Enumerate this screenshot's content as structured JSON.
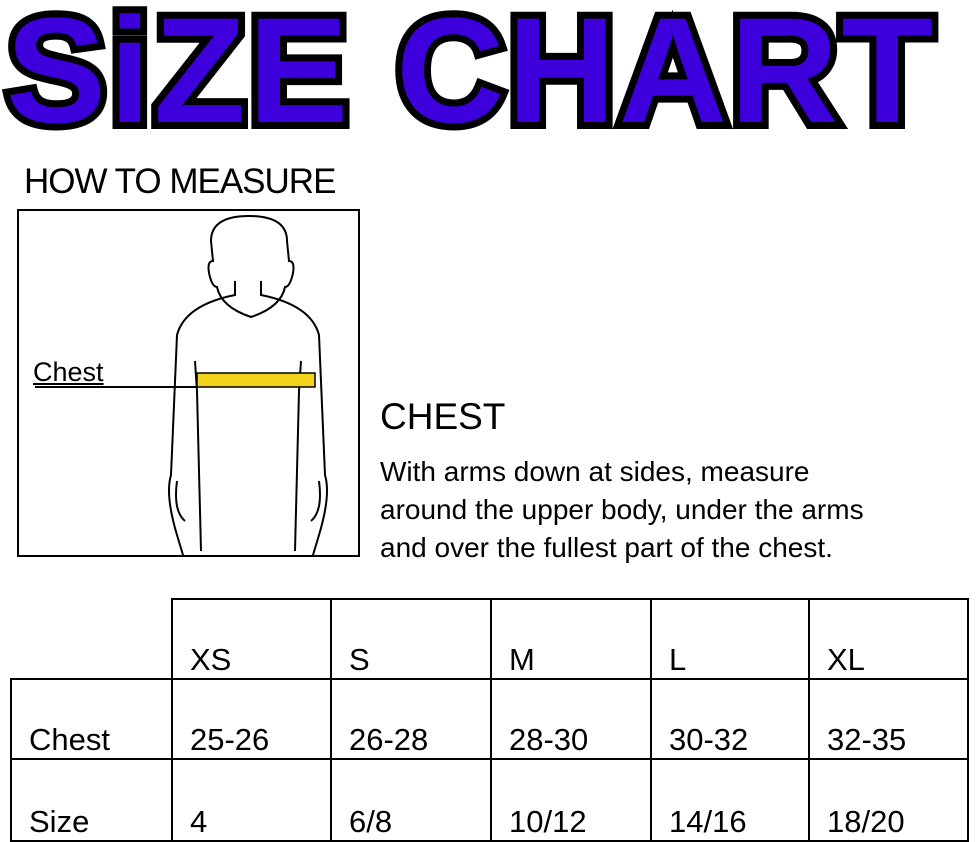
{
  "title": "SiZE CHART",
  "title_color": "#3d00dd",
  "how_to_measure": "HOW TO MEASURE",
  "figure": {
    "label": "Chest",
    "tape_color": "#f2d21b"
  },
  "chest": {
    "heading": "CHEST",
    "lines": [
      "With arms down at sides, measure",
      "around the upper body, under the arms",
      "and over the fullest part of the chest."
    ]
  },
  "table": {
    "sizes": [
      "XS",
      "S",
      "M",
      "L",
      "XL"
    ],
    "rows": [
      {
        "label": "Chest",
        "values": [
          "25-26",
          "26-28",
          "28-30",
          "30-32",
          "32-35"
        ]
      },
      {
        "label": "Size",
        "values": [
          "4",
          "6/8",
          "10/12",
          "14/16",
          "18/20"
        ]
      }
    ]
  }
}
